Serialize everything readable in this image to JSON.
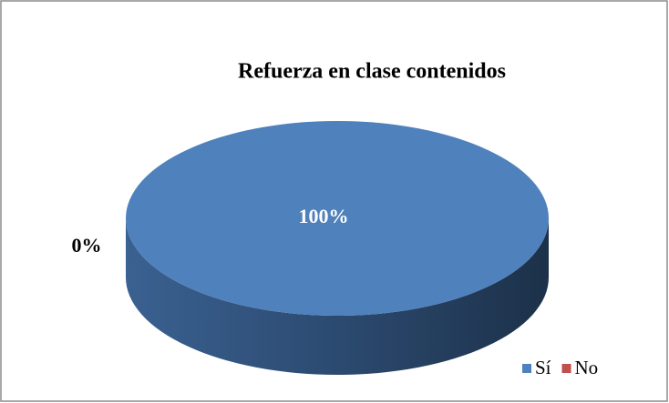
{
  "chart_data": {
    "type": "pie",
    "title": "Refuerza en clase contenidos",
    "categories": [
      "Sí",
      "No"
    ],
    "values": [
      100,
      0
    ],
    "value_labels": [
      "100%",
      "0%"
    ],
    "colors": [
      "#4f81bd",
      "#c0504d"
    ],
    "legend": "bottom-right"
  }
}
